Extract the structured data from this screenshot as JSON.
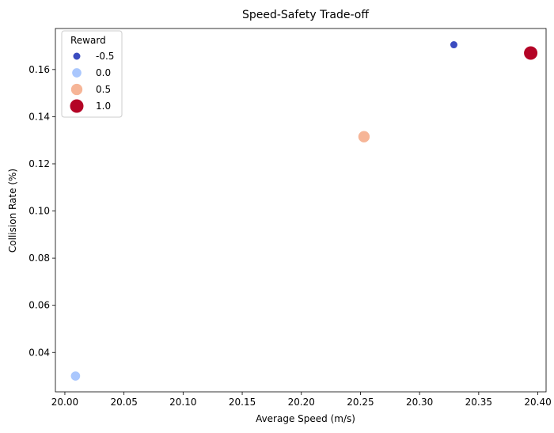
{
  "chart_data": {
    "type": "scatter",
    "title": "Speed-Safety Trade-off",
    "xlabel": "Average Speed (m/s)",
    "ylabel": "Collision Rate (%)",
    "xlim": [
      19.992,
      20.407
    ],
    "ylim": [
      0.0233,
      0.1774
    ],
    "xticks": [
      20.0,
      20.05,
      20.1,
      20.15,
      20.2,
      20.25,
      20.3,
      20.35,
      20.4
    ],
    "xtick_labels": [
      "20.00",
      "20.05",
      "20.10",
      "20.15",
      "20.20",
      "20.25",
      "20.30",
      "20.35",
      "20.40"
    ],
    "yticks": [
      0.04,
      0.06,
      0.08,
      0.1,
      0.12,
      0.14,
      0.16
    ],
    "ytick_labels": [
      "0.04",
      "0.06",
      "0.08",
      "0.10",
      "0.12",
      "0.14",
      "0.16"
    ],
    "grid": false,
    "legend": {
      "title": "Reward",
      "placement": "top-left",
      "entries": [
        {
          "label": "-0.5",
          "reward": -0.5,
          "color": "#3b4cc0"
        },
        {
          "label": "0.0",
          "reward": 0.0,
          "color": "#aac7fd"
        },
        {
          "label": "0.5",
          "reward": 0.5,
          "color": "#f6b597"
        },
        {
          "label": "1.0",
          "reward": 1.0,
          "color": "#b40426"
        }
      ]
    },
    "points": [
      {
        "x": 20.009,
        "y": 0.03,
        "reward": 0.0,
        "color": "#aac7fd"
      },
      {
        "x": 20.253,
        "y": 0.1315,
        "reward": 0.5,
        "color": "#f6b597"
      },
      {
        "x": 20.329,
        "y": 0.1705,
        "reward": -0.5,
        "color": "#3b4cc0"
      },
      {
        "x": 20.394,
        "y": 0.167,
        "reward": 1.0,
        "color": "#b40426"
      }
    ]
  }
}
